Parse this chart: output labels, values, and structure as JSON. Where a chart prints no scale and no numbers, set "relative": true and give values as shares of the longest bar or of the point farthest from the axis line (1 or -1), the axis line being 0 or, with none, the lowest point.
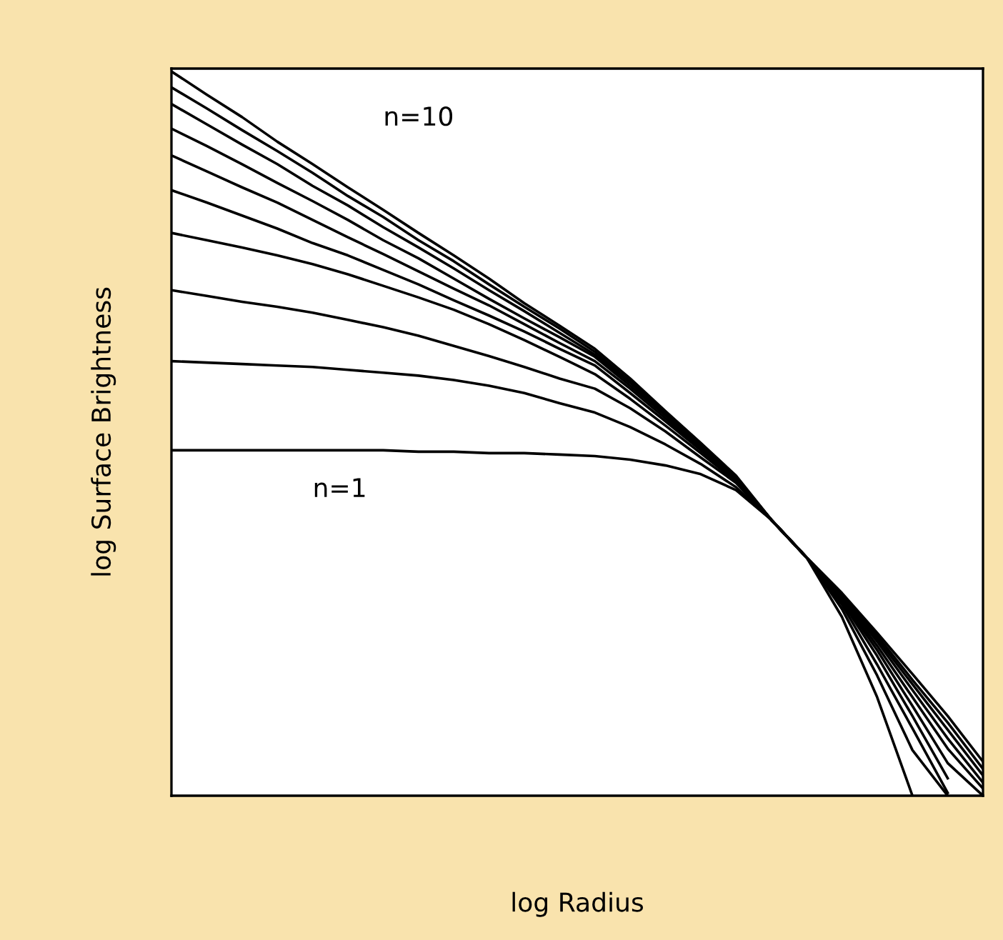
{
  "chart_data": {
    "type": "line",
    "relative": true,
    "xlabel": "log Radius",
    "ylabel": "log Surface Brightness",
    "grid": false,
    "legend": false,
    "marker": "none",
    "line_style": "solid",
    "categories": [
      null,
      null,
      null,
      null,
      null,
      null,
      null,
      null,
      null,
      null,
      null,
      null,
      null,
      null,
      null,
      null,
      null,
      null,
      null,
      null,
      null,
      null,
      null,
      null
    ],
    "series": [
      {
        "name": "n=1",
        "color": "#000000",
        "values": [
          0.477,
          0.477,
          0.477,
          0.477,
          0.477,
          0.477,
          0.477,
          0.475,
          0.475,
          0.473,
          0.473,
          0.471,
          0.469,
          0.464,
          0.456,
          0.444,
          0.422,
          0.381,
          0.329,
          0.247,
          0.136,
          0,
          null,
          null
        ]
      },
      {
        "color": "#000000",
        "values": [
          0.6,
          0.598,
          0.596,
          0.594,
          0.592,
          0.588,
          0.584,
          0.58,
          0.574,
          0.566,
          0.556,
          0.542,
          0.529,
          0.509,
          0.485,
          0.458,
          0.426,
          0.381,
          0.329,
          0.258,
          0.166,
          0.063,
          0,
          null
        ]
      },
      {
        "color": "#000000",
        "values": [
          0.698,
          0.69,
          0.682,
          0.675,
          0.667,
          0.657,
          0.647,
          0.635,
          0.621,
          0.607,
          0.592,
          0.576,
          0.562,
          0.535,
          0.503,
          0.467,
          0.432,
          0.381,
          0.329,
          0.264,
          0.181,
          0.093,
          0.004,
          null
        ]
      },
      {
        "color": "#000000",
        "values": [
          0.777,
          0.767,
          0.757,
          0.746,
          0.734,
          0.72,
          0.704,
          0.688,
          0.671,
          0.651,
          0.629,
          0.606,
          0.582,
          0.548,
          0.511,
          0.473,
          0.434,
          0.381,
          0.329,
          0.268,
          0.193,
          0.11,
          0.024,
          null
        ]
      },
      {
        "color": "#000000",
        "values": [
          0.836,
          0.819,
          0.801,
          0.783,
          0.763,
          0.746,
          0.726,
          0.706,
          0.684,
          0.663,
          0.641,
          0.617,
          0.594,
          0.556,
          0.517,
          0.477,
          0.436,
          0.381,
          0.329,
          0.27,
          0.201,
          0.124,
          0.045,
          0
        ]
      },
      {
        "color": "#000000",
        "values": [
          0.884,
          0.862,
          0.84,
          0.819,
          0.795,
          0.771,
          0.748,
          0.724,
          0.7,
          0.677,
          0.651,
          0.625,
          0.6,
          0.562,
          0.521,
          0.479,
          0.438,
          0.381,
          0.329,
          0.272,
          0.207,
          0.136,
          0.065,
          0.01
        ]
      },
      {
        "color": "#000000",
        "values": [
          0.921,
          0.897,
          0.872,
          0.846,
          0.821,
          0.795,
          0.767,
          0.742,
          0.714,
          0.686,
          0.659,
          0.633,
          0.606,
          0.566,
          0.525,
          0.481,
          0.438,
          0.381,
          0.329,
          0.274,
          0.213,
          0.146,
          0.079,
          0.018
        ]
      },
      {
        "color": "#000000",
        "values": [
          0.955,
          0.927,
          0.899,
          0.872,
          0.842,
          0.815,
          0.785,
          0.757,
          0.728,
          0.698,
          0.669,
          0.639,
          0.609,
          0.57,
          0.527,
          0.483,
          0.44,
          0.381,
          0.329,
          0.276,
          0.217,
          0.154,
          0.091,
          0.028
        ]
      },
      {
        "color": "#000000",
        "values": [
          0.978,
          0.949,
          0.919,
          0.89,
          0.86,
          0.828,
          0.799,
          0.767,
          0.738,
          0.706,
          0.675,
          0.645,
          0.613,
          0.572,
          0.529,
          0.485,
          0.44,
          0.381,
          0.329,
          0.278,
          0.221,
          0.16,
          0.101,
          0.037
        ]
      },
      {
        "name": "n=10",
        "color": "#000000",
        "values": [
          1.0,
          0.968,
          0.937,
          0.903,
          0.872,
          0.84,
          0.809,
          0.777,
          0.746,
          0.714,
          0.68,
          0.649,
          0.617,
          0.576,
          0.531,
          0.487,
          0.442,
          0.381,
          0.329,
          0.28,
          0.225,
          0.168,
          0.11,
          0.047
        ]
      }
    ]
  }
}
